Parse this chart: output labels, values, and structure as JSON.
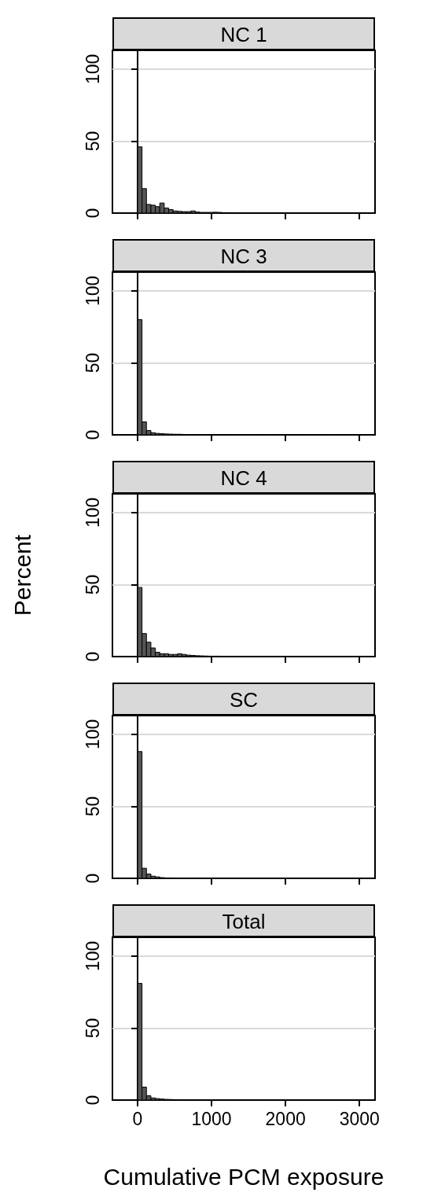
{
  "chart_data": [
    {
      "type": "histogram",
      "title": "NC 1",
      "bins": [
        0,
        60,
        120,
        180,
        240,
        300,
        360,
        420,
        480,
        540,
        600,
        660,
        720,
        780,
        840,
        900,
        960,
        1020,
        1080,
        1140,
        1200,
        1260,
        1320
      ],
      "values": [
        46,
        17,
        6,
        5.5,
        4.5,
        7,
        3.5,
        2.5,
        1.5,
        1.2,
        1,
        1,
        1.5,
        0.7,
        0.5,
        0.5,
        0.5,
        0.6,
        0.5,
        0.3,
        0.3,
        0.3
      ],
      "color": "#555555",
      "xlim": [
        -340,
        3210
      ],
      "xticks": [
        0,
        1000,
        2000,
        3000
      ],
      "ylim": [
        0,
        113
      ],
      "yticks": [
        0,
        50,
        100
      ],
      "grid": "y",
      "tick_labels": "y"
    },
    {
      "type": "histogram",
      "title": "NC 3",
      "bins": [
        0,
        60,
        120,
        180,
        240,
        300,
        360,
        420,
        480,
        540,
        600,
        660,
        720,
        780,
        840,
        900,
        960,
        1020,
        1080,
        1140,
        1200,
        1260,
        1320,
        1380,
        1440,
        1500,
        1560,
        1620,
        1680,
        1740,
        1800,
        1860,
        1920,
        1980,
        2040,
        2100,
        2160,
        2220,
        2280,
        2340,
        2400,
        2460,
        2520,
        2580,
        2640,
        2700,
        2760,
        2820,
        2880,
        2940
      ],
      "values": [
        80,
        9,
        3,
        1.5,
        1,
        0.8,
        0.6,
        0.5,
        0.4,
        0.4,
        0.2,
        0.2,
        0.2,
        0.2,
        0.2,
        0.2,
        0.2,
        0.2,
        0.2,
        0.2,
        0.2,
        0.2,
        0.2,
        0.2,
        0.2,
        0.2,
        0.2,
        0.2,
        0.2,
        0.2,
        0.2,
        0.2,
        0.2,
        0.2,
        0.2,
        0,
        0,
        0.2,
        0.2,
        0.2,
        0.2,
        0.2,
        0.2,
        0.2,
        0.2,
        0.2,
        0.2,
        0.2,
        0.2
      ],
      "color": "#555555",
      "xlim": [
        -340,
        3210
      ],
      "xticks": [
        0,
        1000,
        2000,
        3000
      ],
      "ylim": [
        0,
        113
      ],
      "yticks": [
        0,
        50,
        100
      ],
      "grid": "y",
      "tick_labels": "y"
    },
    {
      "type": "histogram",
      "title": "NC 4",
      "ylabel": "Percent",
      "bins": [
        0,
        60,
        120,
        180,
        240,
        300,
        360,
        420,
        480,
        540,
        600,
        660,
        720,
        780,
        840,
        900,
        960,
        1020,
        1080,
        1140,
        1200,
        1260
      ],
      "values": [
        48,
        16,
        10,
        6,
        3,
        2,
        2,
        1.5,
        1.5,
        2,
        1.5,
        1,
        0.8,
        0.6,
        0.5,
        0.4,
        0.3,
        0.3,
        0.3,
        0.2,
        0.2
      ],
      "color": "#555555",
      "xlim": [
        -340,
        3210
      ],
      "xticks": [
        0,
        1000,
        2000,
        3000
      ],
      "ylim": [
        0,
        113
      ],
      "yticks": [
        0,
        50,
        100
      ],
      "grid": "y",
      "tick_labels": "y"
    },
    {
      "type": "histogram",
      "title": "SC",
      "bins": [
        0,
        60,
        120,
        180,
        240,
        300,
        360,
        420,
        480,
        540,
        600,
        660,
        720
      ],
      "values": [
        88,
        7,
        3,
        1.5,
        1,
        0.5,
        0.3,
        0.3,
        0.2,
        0.2,
        0.2,
        0.2
      ],
      "color": "#555555",
      "xlim": [
        -340,
        3210
      ],
      "xticks": [
        0,
        1000,
        2000,
        3000
      ],
      "ylim": [
        0,
        113
      ],
      "yticks": [
        0,
        50,
        100
      ],
      "grid": "y",
      "tick_labels": "y"
    },
    {
      "type": "histogram",
      "title": "Total",
      "xlabel": "Cumulative PCM exposure",
      "bins": [
        0,
        60,
        120,
        180,
        240,
        300,
        360,
        420,
        480,
        540,
        600,
        660,
        720,
        780,
        840,
        900,
        960,
        1020,
        1080,
        1140,
        1200,
        1260,
        1320,
        1380,
        1440,
        1500,
        1560,
        1620,
        1680,
        1740,
        1800,
        1860,
        1920,
        1980,
        2040,
        2100,
        2160,
        2220,
        2280,
        2340,
        2400,
        2460,
        2520,
        2580,
        2640,
        2700,
        2760,
        2820,
        2880,
        2940
      ],
      "values": [
        81,
        9,
        3,
        1.5,
        1,
        0.7,
        0.5,
        0.4,
        0.3,
        0.3,
        0.2,
        0.2,
        0.2,
        0.2,
        0.2,
        0.2,
        0.2,
        0.2,
        0.2,
        0.2,
        0.2,
        0.2,
        0.2,
        0.2,
        0.2,
        0.2,
        0.2,
        0.2,
        0.2,
        0.2,
        0.2,
        0.2,
        0.2,
        0.2,
        0.2,
        0,
        0,
        0.1,
        0.1,
        0.1,
        0.1,
        0.1,
        0.1,
        0.1,
        0.1,
        0.1,
        0.1,
        0.1,
        0.1
      ],
      "color": "#555555",
      "xlim": [
        -340,
        3210
      ],
      "xticks": [
        0,
        1000,
        2000,
        3000
      ],
      "ylim": [
        0,
        113
      ],
      "yticks": [
        0,
        50,
        100
      ],
      "grid": "y"
    }
  ]
}
